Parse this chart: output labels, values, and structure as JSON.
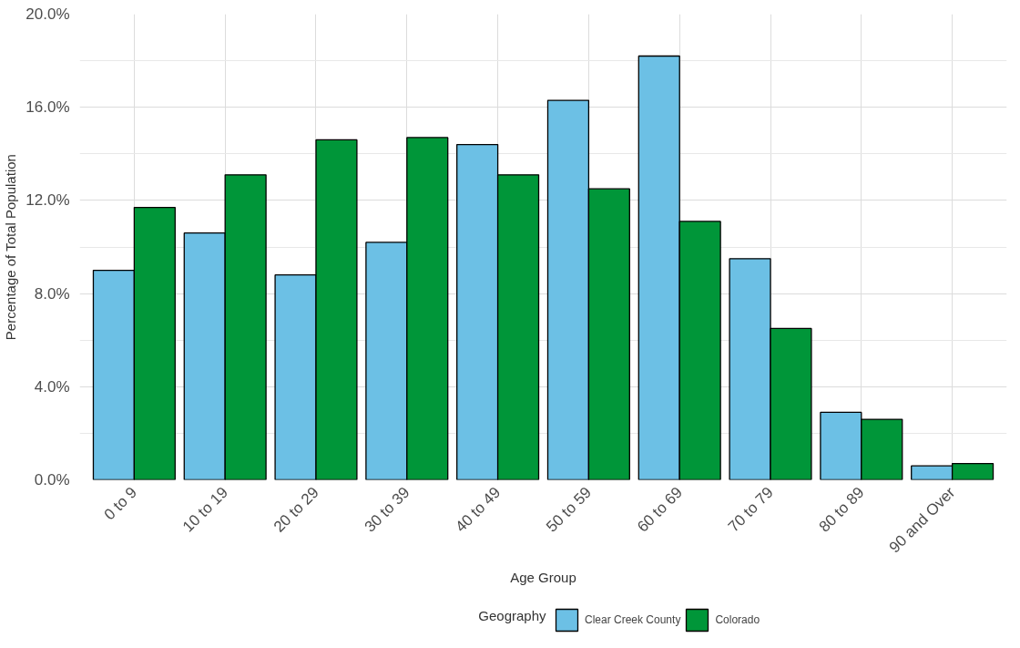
{
  "chart_data": {
    "type": "bar",
    "xlabel": "Age Group",
    "ylabel": "Percentage of Total Population",
    "legend_title": "Geography",
    "categories": [
      "0 to 9",
      "10 to 19",
      "20 to 29",
      "30 to 39",
      "40 to 49",
      "50 to 59",
      "60 to 69",
      "70 to 79",
      "80 to 89",
      "90 and Over"
    ],
    "series": [
      {
        "name": "Clear Creek County",
        "color": "#6cc0e5",
        "values": [
          9.0,
          10.6,
          8.8,
          10.2,
          14.4,
          16.3,
          18.2,
          9.5,
          2.9,
          0.6
        ]
      },
      {
        "name": "Colorado",
        "color": "#009639",
        "values": [
          11.7,
          13.1,
          14.6,
          14.7,
          13.1,
          12.5,
          11.1,
          6.5,
          2.6,
          0.7
        ]
      }
    ],
    "ylim": [
      0,
      20
    ],
    "yticks": [
      {
        "value": 0,
        "label": "0.0%"
      },
      {
        "value": 4,
        "label": "4.0%"
      },
      {
        "value": 8,
        "label": "8.0%"
      },
      {
        "value": 12,
        "label": "12.0%"
      },
      {
        "value": 16,
        "label": "16.0%"
      },
      {
        "value": 20,
        "label": "20.0%"
      }
    ],
    "grid": true,
    "legend": "bottom"
  }
}
